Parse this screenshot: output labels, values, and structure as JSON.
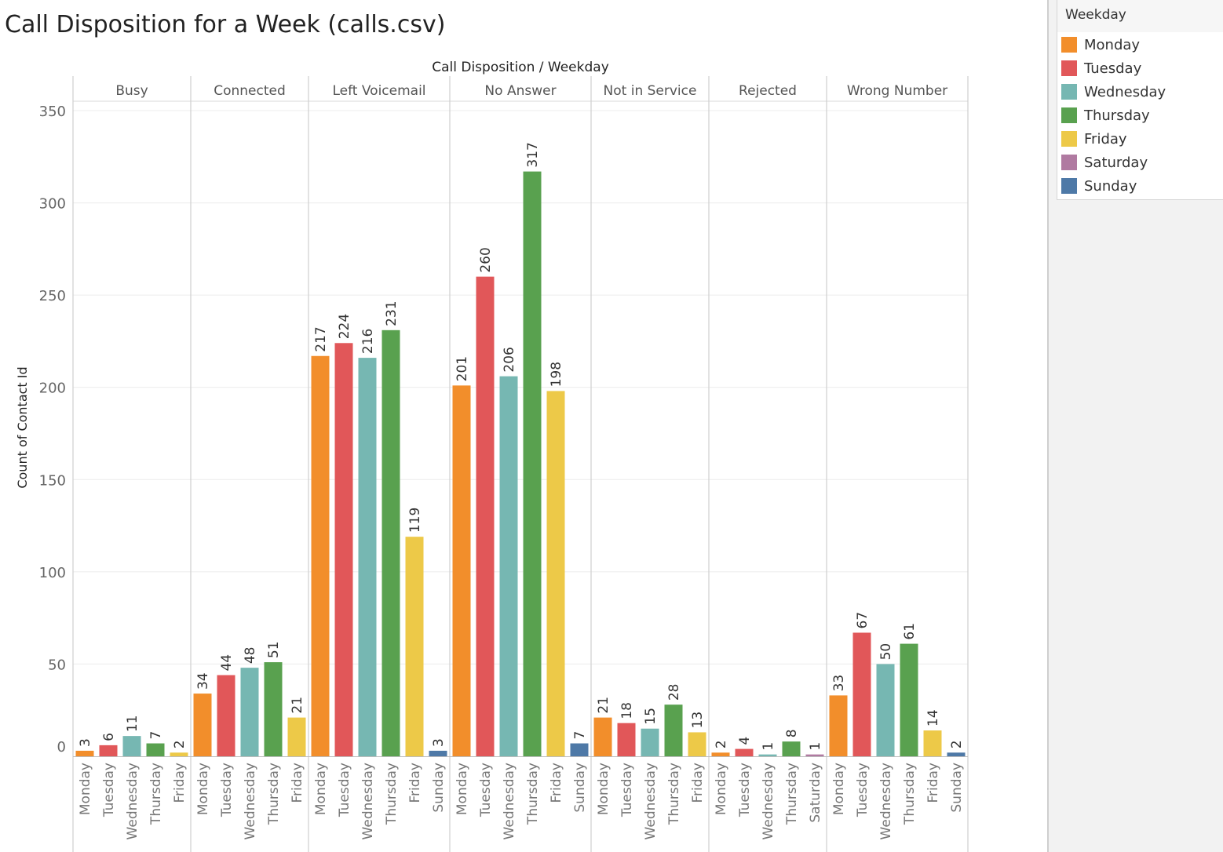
{
  "title": "Call Disposition for a Week (calls.csv)",
  "legend": {
    "title": "Weekday",
    "items": [
      {
        "label": "Monday",
        "color": "#f28e2b"
      },
      {
        "label": "Tuesday",
        "color": "#e15759"
      },
      {
        "label": "Wednesday",
        "color": "#76b7b2"
      },
      {
        "label": "Thursday",
        "color": "#59a14f"
      },
      {
        "label": "Friday",
        "color": "#edc948"
      },
      {
        "label": "Saturday",
        "color": "#b07aa1"
      },
      {
        "label": "Sunday",
        "color": "#4e79a7"
      }
    ]
  },
  "chart_data": {
    "type": "bar",
    "title": "Call Disposition for a Week (calls.csv)",
    "column_header": "Call Disposition / Weekday",
    "ylabel": "Count of Contact Id",
    "ylim": [
      0,
      350
    ],
    "yticks": [
      0,
      50,
      100,
      150,
      200,
      250,
      300,
      350
    ],
    "grid": true,
    "legend_position": "top-right",
    "panels": [
      {
        "name": "Busy",
        "bars": [
          {
            "day": "Monday",
            "value": 3
          },
          {
            "day": "Tuesday",
            "value": 6
          },
          {
            "day": "Wednesday",
            "value": 11
          },
          {
            "day": "Thursday",
            "value": 7
          },
          {
            "day": "Friday",
            "value": 2
          }
        ]
      },
      {
        "name": "Connected",
        "bars": [
          {
            "day": "Monday",
            "value": 34
          },
          {
            "day": "Tuesday",
            "value": 44
          },
          {
            "day": "Wednesday",
            "value": 48
          },
          {
            "day": "Thursday",
            "value": 51
          },
          {
            "day": "Friday",
            "value": 21
          }
        ]
      },
      {
        "name": "Left Voicemail",
        "bars": [
          {
            "day": "Monday",
            "value": 217
          },
          {
            "day": "Tuesday",
            "value": 224
          },
          {
            "day": "Wednesday",
            "value": 216
          },
          {
            "day": "Thursday",
            "value": 231
          },
          {
            "day": "Friday",
            "value": 119
          },
          {
            "day": "Sunday",
            "value": 3
          }
        ]
      },
      {
        "name": "No Answer",
        "bars": [
          {
            "day": "Monday",
            "value": 201
          },
          {
            "day": "Tuesday",
            "value": 260
          },
          {
            "day": "Wednesday",
            "value": 206
          },
          {
            "day": "Thursday",
            "value": 317
          },
          {
            "day": "Friday",
            "value": 198
          },
          {
            "day": "Sunday",
            "value": 7
          }
        ]
      },
      {
        "name": "Not in Service",
        "bars": [
          {
            "day": "Monday",
            "value": 21
          },
          {
            "day": "Tuesday",
            "value": 18
          },
          {
            "day": "Wednesday",
            "value": 15
          },
          {
            "day": "Thursday",
            "value": 28
          },
          {
            "day": "Friday",
            "value": 13
          }
        ]
      },
      {
        "name": "Rejected",
        "bars": [
          {
            "day": "Monday",
            "value": 2
          },
          {
            "day": "Tuesday",
            "value": 4
          },
          {
            "day": "Wednesday",
            "value": 1
          },
          {
            "day": "Thursday",
            "value": 8
          },
          {
            "day": "Saturday",
            "value": 1
          }
        ]
      },
      {
        "name": "Wrong Number",
        "bars": [
          {
            "day": "Monday",
            "value": 33
          },
          {
            "day": "Tuesday",
            "value": 67
          },
          {
            "day": "Wednesday",
            "value": 50
          },
          {
            "day": "Thursday",
            "value": 61
          },
          {
            "day": "Friday",
            "value": 14
          },
          {
            "day": "Sunday",
            "value": 2
          }
        ]
      }
    ]
  }
}
